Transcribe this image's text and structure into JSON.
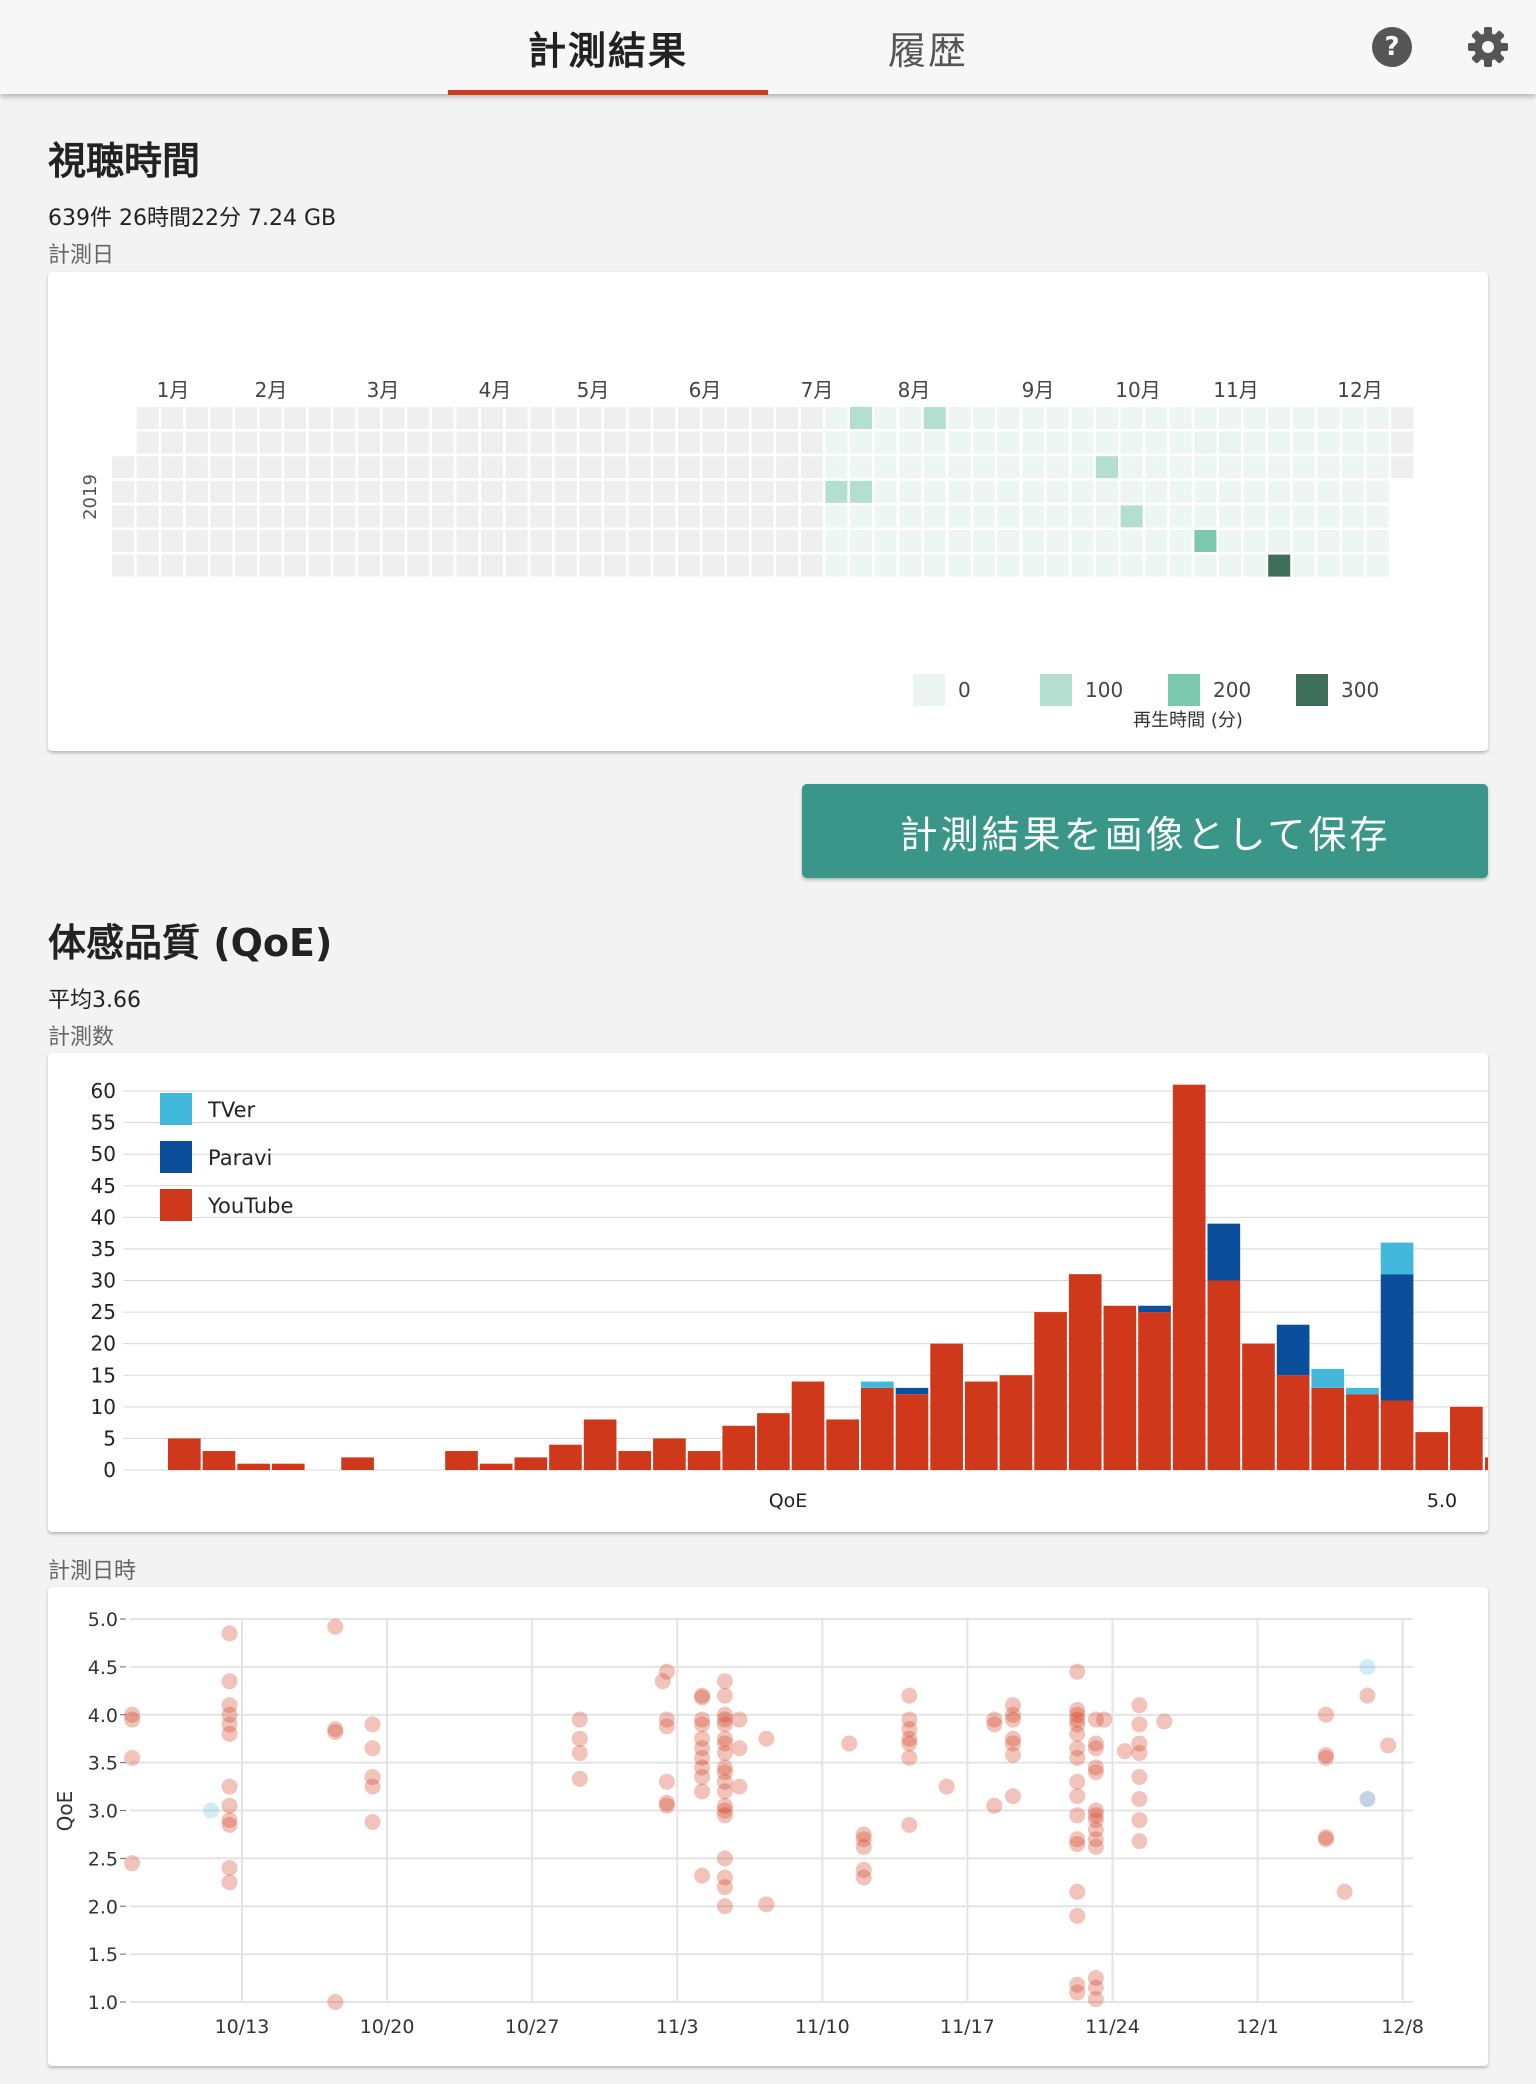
{
  "tabs": [
    {
      "label": "計測結果",
      "active": true
    },
    {
      "label": "履歴",
      "active": false
    }
  ],
  "header_icons": {
    "help": "help-icon",
    "settings": "gear-icon"
  },
  "colors": {
    "accent": "#d33a1f",
    "button": "#3a9688",
    "youtube": "#d0381c",
    "paravi": "#0b4f9c",
    "tver": "#42b8dd"
  },
  "viewing": {
    "title": "視聴時間",
    "summary": "639件 26時間22分 7.24 GB",
    "caption": "計測日",
    "heatmap": {
      "year": "2019",
      "months": [
        "1月",
        "2月",
        "3月",
        "4月",
        "5月",
        "6月",
        "7月",
        "8月",
        "9月",
        "10月",
        "11月",
        "12月"
      ],
      "legend_title": "再生時間 (分)",
      "legend": [
        {
          "label": "0",
          "color": "#eaf5f1"
        },
        {
          "label": "100",
          "color": "#b3dfd0"
        },
        {
          "label": "200",
          "color": "#7ac8ad"
        },
        {
          "label": "300",
          "color": "#3e6f5c"
        }
      ],
      "data": [
        {
          "week": 30,
          "day": 0,
          "level": 2
        },
        {
          "week": 33,
          "day": 0,
          "level": 2
        },
        {
          "week": 29,
          "day": 3,
          "level": 2
        },
        {
          "week": 30,
          "day": 3,
          "level": 2
        },
        {
          "week": 40,
          "day": 2,
          "level": 2
        },
        {
          "week": 41,
          "day": 4,
          "level": 2
        },
        {
          "week": 44,
          "day": 1,
          "level": 1
        },
        {
          "week": 45,
          "day": 1,
          "level": 1
        },
        {
          "week": 44,
          "day": 5,
          "level": 3
        },
        {
          "week": 47,
          "day": 5,
          "level": 1
        },
        {
          "week": 47,
          "day": 6,
          "level": 4
        }
      ]
    }
  },
  "save_button": {
    "label": "計測結果を画像として保存"
  },
  "qoe": {
    "title": "体感品質 (QoE)",
    "summary": "平均3.66",
    "caption_hist": "計測数",
    "caption_scatter": "計測日時"
  },
  "chart_data": [
    {
      "type": "bar",
      "title": "",
      "xlabel": "QoE",
      "ylabel": "計測数",
      "x_end_label": "5.0",
      "ylim": [
        0,
        60
      ],
      "yticks": [
        0,
        5,
        10,
        15,
        20,
        25,
        30,
        35,
        40,
        45,
        50,
        55,
        60
      ],
      "legend": [
        "TVer",
        "Paravi",
        "YouTube"
      ],
      "stacked": true,
      "series": [
        {
          "name": "YouTube",
          "values": [
            5,
            3,
            1,
            1,
            0,
            2,
            0,
            0,
            3,
            1,
            2,
            4,
            8,
            3,
            5,
            3,
            7,
            9,
            14,
            8,
            13,
            12,
            20,
            14,
            15,
            25,
            31,
            26,
            25,
            61,
            30,
            20,
            15,
            13,
            12,
            11,
            6,
            10
          ]
        },
        {
          "name": "Paravi",
          "values": [
            0,
            0,
            0,
            0,
            0,
            0,
            0,
            0,
            0,
            0,
            0,
            0,
            0,
            0,
            0,
            0,
            0,
            0,
            0,
            0,
            0,
            1,
            0,
            0,
            0,
            0,
            0,
            0,
            1,
            0,
            9,
            0,
            8,
            0,
            0,
            20,
            0,
            0
          ]
        },
        {
          "name": "TVer",
          "values": [
            0,
            0,
            0,
            0,
            0,
            0,
            0,
            0,
            0,
            0,
            0,
            0,
            0,
            0,
            0,
            0,
            0,
            0,
            0,
            0,
            1,
            0,
            0,
            0,
            0,
            0,
            0,
            0,
            0,
            0,
            0,
            0,
            0,
            3,
            1,
            5,
            0,
            0
          ]
        }
      ]
    },
    {
      "type": "scatter",
      "xlabel": "計測日時",
      "ylabel": "QoE",
      "ylim": [
        1.0,
        5.0
      ],
      "yticks": [
        "1.0",
        "1.5",
        "2.0",
        "2.5",
        "3.0",
        "3.5",
        "4.0",
        "4.5",
        "5.0"
      ],
      "xticks": [
        "10/13",
        "10/20",
        "10/27",
        "11/3",
        "11/10",
        "11/17",
        "11/24",
        "12/1",
        "12/8"
      ],
      "xdomain": [
        -0.5,
        61.5
      ],
      "points": [
        [
          -0.3,
          3.95,
          "YouTube"
        ],
        [
          -0.3,
          4.0,
          "YouTube"
        ],
        [
          -0.3,
          3.55,
          "YouTube"
        ],
        [
          -0.3,
          2.45,
          "YouTube"
        ],
        [
          3.5,
          3.0,
          "TVer"
        ],
        [
          4.4,
          4.85,
          "YouTube"
        ],
        [
          4.4,
          4.35,
          "YouTube"
        ],
        [
          4.4,
          4.1,
          "YouTube"
        ],
        [
          4.4,
          4.0,
          "YouTube"
        ],
        [
          4.4,
          3.9,
          "YouTube"
        ],
        [
          4.4,
          3.8,
          "YouTube"
        ],
        [
          4.4,
          3.25,
          "YouTube"
        ],
        [
          4.4,
          3.05,
          "YouTube"
        ],
        [
          4.4,
          2.9,
          "YouTube"
        ],
        [
          4.4,
          2.85,
          "YouTube"
        ],
        [
          4.4,
          2.4,
          "YouTube"
        ],
        [
          4.4,
          2.25,
          "YouTube"
        ],
        [
          9.5,
          4.92,
          "YouTube"
        ],
        [
          9.5,
          3.85,
          "YouTube"
        ],
        [
          9.5,
          3.82,
          "YouTube"
        ],
        [
          9.5,
          1.0,
          "YouTube"
        ],
        [
          11.3,
          3.9,
          "YouTube"
        ],
        [
          11.3,
          3.65,
          "YouTube"
        ],
        [
          11.3,
          3.35,
          "YouTube"
        ],
        [
          11.3,
          3.25,
          "YouTube"
        ],
        [
          11.3,
          2.88,
          "YouTube"
        ],
        [
          21.3,
          3.95,
          "YouTube"
        ],
        [
          21.3,
          3.75,
          "YouTube"
        ],
        [
          21.3,
          3.6,
          "YouTube"
        ],
        [
          21.3,
          3.33,
          "YouTube"
        ],
        [
          25.3,
          4.35,
          "YouTube"
        ],
        [
          25.5,
          4.45,
          "YouTube"
        ],
        [
          25.5,
          3.95,
          "YouTube"
        ],
        [
          25.5,
          3.88,
          "YouTube"
        ],
        [
          25.5,
          3.3,
          "YouTube"
        ],
        [
          25.5,
          3.08,
          "YouTube"
        ],
        [
          25.5,
          3.05,
          "YouTube"
        ],
        [
          27.2,
          4.2,
          "YouTube"
        ],
        [
          27.2,
          4.18,
          "YouTube"
        ],
        [
          27.2,
          3.95,
          "YouTube"
        ],
        [
          27.2,
          3.9,
          "YouTube"
        ],
        [
          27.2,
          3.75,
          "YouTube"
        ],
        [
          27.2,
          3.65,
          "YouTube"
        ],
        [
          27.2,
          3.55,
          "YouTube"
        ],
        [
          27.2,
          3.45,
          "YouTube"
        ],
        [
          27.2,
          3.35,
          "YouTube"
        ],
        [
          27.2,
          3.2,
          "YouTube"
        ],
        [
          27.2,
          2.32,
          "YouTube"
        ],
        [
          28.3,
          4.35,
          "YouTube"
        ],
        [
          28.3,
          4.2,
          "YouTube"
        ],
        [
          28.3,
          4.0,
          "YouTube"
        ],
        [
          28.3,
          3.95,
          "YouTube"
        ],
        [
          28.3,
          3.9,
          "YouTube"
        ],
        [
          28.3,
          3.75,
          "YouTube"
        ],
        [
          28.3,
          3.7,
          "YouTube"
        ],
        [
          28.3,
          3.6,
          "YouTube"
        ],
        [
          28.3,
          3.45,
          "YouTube"
        ],
        [
          28.3,
          3.4,
          "YouTube"
        ],
        [
          28.3,
          3.3,
          "YouTube"
        ],
        [
          28.3,
          3.2,
          "YouTube"
        ],
        [
          28.3,
          3.05,
          "YouTube"
        ],
        [
          28.3,
          3.0,
          "YouTube"
        ],
        [
          28.3,
          2.95,
          "YouTube"
        ],
        [
          28.3,
          2.5,
          "YouTube"
        ],
        [
          28.3,
          2.3,
          "YouTube"
        ],
        [
          28.3,
          2.2,
          "YouTube"
        ],
        [
          28.3,
          2.0,
          "YouTube"
        ],
        [
          29.0,
          3.95,
          "YouTube"
        ],
        [
          29.0,
          3.65,
          "YouTube"
        ],
        [
          29.0,
          3.25,
          "YouTube"
        ],
        [
          30.3,
          3.75,
          "YouTube"
        ],
        [
          30.3,
          2.02,
          "YouTube"
        ],
        [
          34.3,
          3.7,
          "YouTube"
        ],
        [
          35.0,
          2.75,
          "YouTube"
        ],
        [
          35.0,
          2.7,
          "YouTube"
        ],
        [
          35.0,
          2.62,
          "YouTube"
        ],
        [
          35.0,
          2.38,
          "YouTube"
        ],
        [
          35.0,
          2.3,
          "YouTube"
        ],
        [
          37.2,
          4.2,
          "YouTube"
        ],
        [
          37.2,
          3.95,
          "YouTube"
        ],
        [
          37.2,
          3.85,
          "YouTube"
        ],
        [
          37.2,
          3.75,
          "YouTube"
        ],
        [
          37.2,
          3.7,
          "YouTube"
        ],
        [
          37.2,
          3.55,
          "YouTube"
        ],
        [
          37.2,
          2.85,
          "YouTube"
        ],
        [
          39.0,
          3.25,
          "YouTube"
        ],
        [
          41.3,
          3.95,
          "YouTube"
        ],
        [
          41.3,
          3.9,
          "YouTube"
        ],
        [
          41.3,
          3.05,
          "YouTube"
        ],
        [
          42.2,
          4.1,
          "YouTube"
        ],
        [
          42.2,
          4.0,
          "YouTube"
        ],
        [
          42.2,
          3.95,
          "YouTube"
        ],
        [
          42.2,
          3.75,
          "YouTube"
        ],
        [
          42.2,
          3.7,
          "YouTube"
        ],
        [
          42.2,
          3.58,
          "YouTube"
        ],
        [
          42.2,
          3.15,
          "YouTube"
        ],
        [
          45.3,
          4.45,
          "YouTube"
        ],
        [
          45.3,
          4.05,
          "YouTube"
        ],
        [
          45.3,
          4.0,
          "YouTube"
        ],
        [
          45.3,
          3.95,
          "YouTube"
        ],
        [
          45.3,
          3.9,
          "YouTube"
        ],
        [
          45.3,
          3.8,
          "YouTube"
        ],
        [
          45.3,
          3.65,
          "YouTube"
        ],
        [
          45.3,
          3.55,
          "YouTube"
        ],
        [
          45.3,
          3.3,
          "YouTube"
        ],
        [
          45.3,
          3.15,
          "YouTube"
        ],
        [
          45.3,
          2.95,
          "YouTube"
        ],
        [
          45.3,
          2.7,
          "YouTube"
        ],
        [
          45.3,
          2.65,
          "YouTube"
        ],
        [
          45.3,
          2.15,
          "YouTube"
        ],
        [
          45.3,
          1.9,
          "YouTube"
        ],
        [
          45.3,
          1.18,
          "YouTube"
        ],
        [
          45.3,
          1.1,
          "YouTube"
        ],
        [
          46.2,
          3.95,
          "YouTube"
        ],
        [
          46.2,
          3.7,
          "YouTube"
        ],
        [
          46.2,
          3.65,
          "YouTube"
        ],
        [
          46.2,
          3.45,
          "YouTube"
        ],
        [
          46.2,
          3.4,
          "YouTube"
        ],
        [
          46.2,
          3.0,
          "YouTube"
        ],
        [
          46.2,
          2.95,
          "YouTube"
        ],
        [
          46.2,
          2.9,
          "YouTube"
        ],
        [
          46.2,
          2.8,
          "YouTube"
        ],
        [
          46.2,
          2.7,
          "YouTube"
        ],
        [
          46.2,
          2.62,
          "YouTube"
        ],
        [
          46.2,
          1.25,
          "YouTube"
        ],
        [
          46.2,
          1.15,
          "YouTube"
        ],
        [
          46.2,
          1.03,
          "YouTube"
        ],
        [
          46.6,
          3.95,
          "YouTube"
        ],
        [
          47.6,
          3.62,
          "YouTube"
        ],
        [
          48.3,
          4.1,
          "YouTube"
        ],
        [
          48.3,
          3.9,
          "YouTube"
        ],
        [
          48.3,
          3.7,
          "YouTube"
        ],
        [
          48.3,
          3.6,
          "YouTube"
        ],
        [
          48.3,
          3.35,
          "YouTube"
        ],
        [
          48.3,
          3.12,
          "YouTube"
        ],
        [
          48.3,
          2.9,
          "YouTube"
        ],
        [
          48.3,
          2.68,
          "YouTube"
        ],
        [
          49.5,
          3.93,
          "YouTube"
        ],
        [
          57.3,
          4.0,
          "YouTube"
        ],
        [
          57.3,
          3.58,
          "YouTube"
        ],
        [
          57.3,
          3.55,
          "YouTube"
        ],
        [
          57.3,
          2.72,
          "YouTube"
        ],
        [
          57.3,
          2.7,
          "YouTube"
        ],
        [
          58.2,
          2.15,
          "YouTube"
        ],
        [
          59.3,
          4.5,
          "TVer"
        ],
        [
          59.3,
          4.2,
          "YouTube"
        ],
        [
          59.3,
          3.12,
          "Paravi"
        ],
        [
          60.3,
          3.68,
          "YouTube"
        ]
      ]
    }
  ]
}
